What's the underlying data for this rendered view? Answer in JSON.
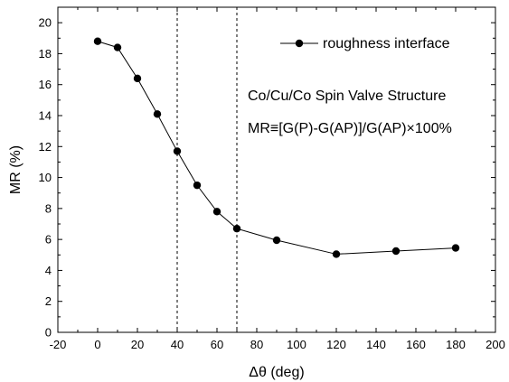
{
  "chart_data": {
    "type": "line",
    "series": [
      {
        "name": "roughness interface",
        "x": [
          0,
          10,
          20,
          30,
          40,
          50,
          60,
          70,
          90,
          120,
          150,
          180
        ],
        "y": [
          18.8,
          18.4,
          16.4,
          14.1,
          11.7,
          9.5,
          7.8,
          6.7,
          5.95,
          5.05,
          5.25,
          5.45
        ]
      }
    ],
    "xlabel": "Δθ (deg)",
    "ylabel": "MR (%)",
    "xlim": [
      -20,
      200
    ],
    "ylim": [
      0,
      21
    ],
    "xticks": [
      -20,
      0,
      20,
      40,
      60,
      80,
      100,
      120,
      140,
      160,
      180,
      200
    ],
    "yticks": [
      0,
      2,
      4,
      6,
      8,
      10,
      12,
      14,
      16,
      18,
      20
    ],
    "vertical_lines": [
      40,
      70
    ],
    "annotations": [
      "Co/Cu/Co Spin Valve Structure",
      "MR≡[G(P)-G(AP)]/G(AP)×100%"
    ],
    "legend_position": "top-right",
    "grid": false,
    "colors": {
      "line": "#000000",
      "marker": "#000000",
      "vline": "#000000"
    }
  }
}
